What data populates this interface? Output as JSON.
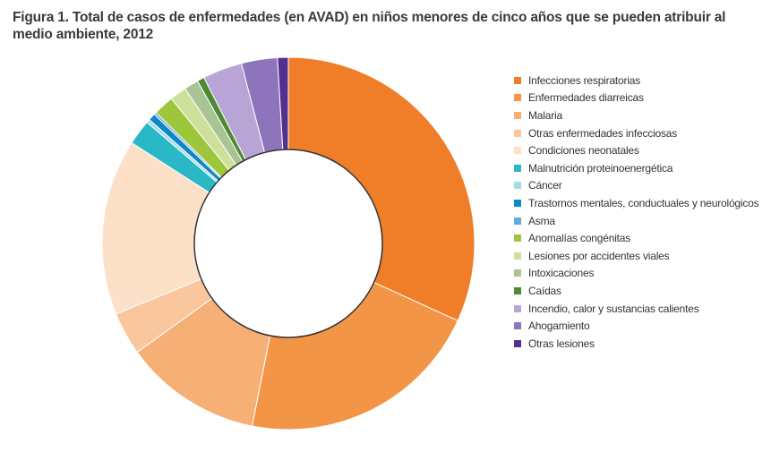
{
  "chart_data": {
    "type": "pie",
    "variant": "donut",
    "title": "Figura 1. Total de casos de enfermedades (en AVAD) en niños menores de cinco años que se pueden atribuir al medio ambiente, 2012",
    "legend_position": "right",
    "categories": [
      "Infecciones respiratorias",
      "Enfermedades diarreicas",
      "Malaria",
      "Otras enfermedades infecciosas",
      "Condiciones neonatales",
      "Malnutrición proteinoenergética",
      "Cáncer",
      "Trastornos mentales, conductuales y neurológicos",
      "Asma",
      "Anomalías congénitas",
      "Lesiones por accidentes viales",
      "Intoxicaciones",
      "Caídas",
      "Incendio, calor y sustancias calientes",
      "Ahogamiento",
      "Otras lesiones"
    ],
    "values": [
      30.6,
      20.5,
      11.5,
      3.6,
      14.7,
      2.1,
      0.3,
      0.6,
      0.2,
      1.7,
      1.4,
      1.2,
      0.6,
      3.3,
      3.0,
      0.9
    ],
    "colors": [
      "#F07D28",
      "#F39546",
      "#F6AF74",
      "#F9C69E",
      "#FCE0C8",
      "#2BB8C6",
      "#A6DCE6",
      "#0F87C6",
      "#62AADB",
      "#9DC63A",
      "#CCE09A",
      "#A9C493",
      "#4E8A33",
      "#B8A5D6",
      "#8E75BB",
      "#54308E"
    ],
    "unit": "%"
  }
}
